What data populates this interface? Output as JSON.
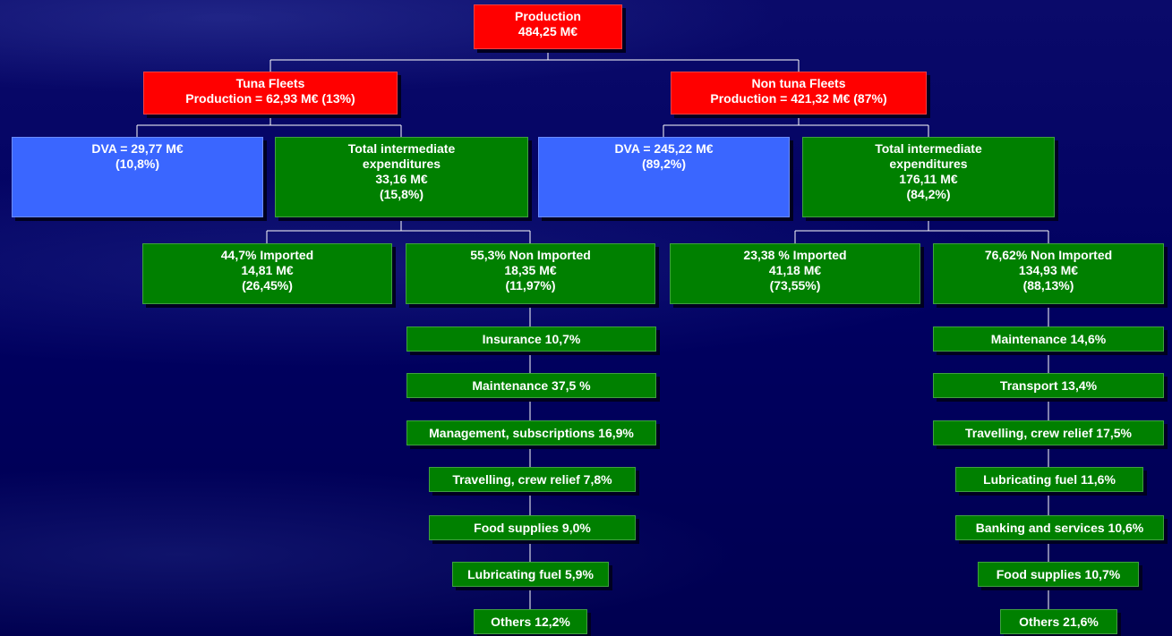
{
  "nodes": [
    {
      "lines": [
        "Production",
        "484,25 M€"
      ]
    },
    {
      "lines": [
        "Tuna Fleets",
        "Production = 62,93 M€ (13%)"
      ]
    },
    {
      "lines": [
        "Non tuna Fleets",
        "Production = 421,32 M€ (87%)"
      ]
    },
    {
      "lines": [
        "DVA = 29,77 M€",
        "(10,8%)"
      ]
    },
    {
      "lines": [
        "Total intermediate",
        "expenditures",
        "33,16 M€",
        "(15,8%)"
      ]
    },
    {
      "lines": [
        "DVA = 245,22 M€",
        "(89,2%)"
      ]
    },
    {
      "lines": [
        "Total intermediate",
        "expenditures",
        "176,11 M€",
        "(84,2%)"
      ]
    },
    {
      "lines": [
        "44,7% Imported",
        "14,81 M€",
        "(26,45%)"
      ]
    },
    {
      "lines": [
        "55,3% Non Imported",
        "18,35 M€",
        "(11,97%)"
      ]
    },
    {
      "lines": [
        "23,38 % Imported",
        "41,18 M€",
        "(73,55%)"
      ]
    },
    {
      "lines": [
        "76,62% Non Imported",
        "134,93 M€",
        "(88,13%)"
      ]
    },
    {
      "lines": [
        "Insurance 10,7%"
      ]
    },
    {
      "lines": [
        "Maintenance 37,5 %"
      ]
    },
    {
      "lines": [
        "Management, subscriptions 16,9%"
      ]
    },
    {
      "lines": [
        "Travelling, crew relief 7,8%"
      ]
    },
    {
      "lines": [
        "Food supplies 9,0%"
      ]
    },
    {
      "lines": [
        "Lubricating fuel 5,9%"
      ]
    },
    {
      "lines": [
        "Others 12,2%"
      ]
    },
    {
      "lines": [
        "Maintenance 14,6%"
      ]
    },
    {
      "lines": [
        "Transport 13,4%"
      ]
    },
    {
      "lines": [
        "Travelling, crew relief 17,5%"
      ]
    },
    {
      "lines": [
        "Lubricating fuel 11,6%"
      ]
    },
    {
      "lines": [
        "Banking and services 10,6%"
      ]
    },
    {
      "lines": [
        "Food supplies 10,7%"
      ]
    },
    {
      "lines": [
        "Others 21,6%"
      ]
    }
  ]
}
